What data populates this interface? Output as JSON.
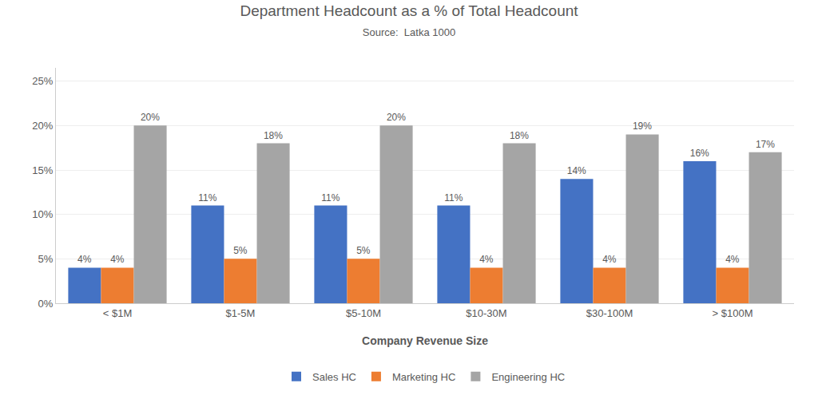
{
  "chart_data": {
    "type": "bar",
    "title": "Department Headcount as a % of Total Headcount",
    "subtitle": "Source:  Latka 1000",
    "x_label": "Company Revenue Size",
    "categories": [
      "< $1M",
      "$1-5M",
      "$5-10M",
      "$10-30M",
      "$30-100M",
      "> $100M"
    ],
    "series": [
      {
        "name": "Sales HC",
        "color": "#4472C4",
        "values": [
          0.04,
          0.11,
          0.11,
          0.11,
          0.14,
          0.16
        ],
        "value_labels": [
          "4%",
          "11%",
          "11%",
          "11%",
          "14%",
          "16%"
        ]
      },
      {
        "name": "Marketing HC",
        "color": "#ED7D31",
        "values": [
          0.04,
          0.05,
          0.05,
          0.04,
          0.04,
          0.04
        ],
        "value_labels": [
          "4%",
          "5%",
          "5%",
          "4%",
          "4%",
          "4%"
        ]
      },
      {
        "name": "Engineering HC",
        "color": "#A5A5A5",
        "values": [
          0.2,
          0.18,
          0.2,
          0.18,
          0.19,
          0.17
        ],
        "value_labels": [
          "20%",
          "18%",
          "20%",
          "18%",
          "19%",
          "17%"
        ]
      }
    ],
    "ylim": [
      0,
      0.265
    ],
    "yticks": [
      {
        "value": 0.0,
        "label": "0%"
      },
      {
        "value": 0.05,
        "label": "5%"
      },
      {
        "value": 0.1,
        "label": "10%"
      },
      {
        "value": 0.15,
        "label": "15%"
      },
      {
        "value": 0.2,
        "label": "20%"
      },
      {
        "value": 0.25,
        "label": "25%"
      }
    ],
    "grid": true,
    "legend": "bottom",
    "data_labels": true
  }
}
